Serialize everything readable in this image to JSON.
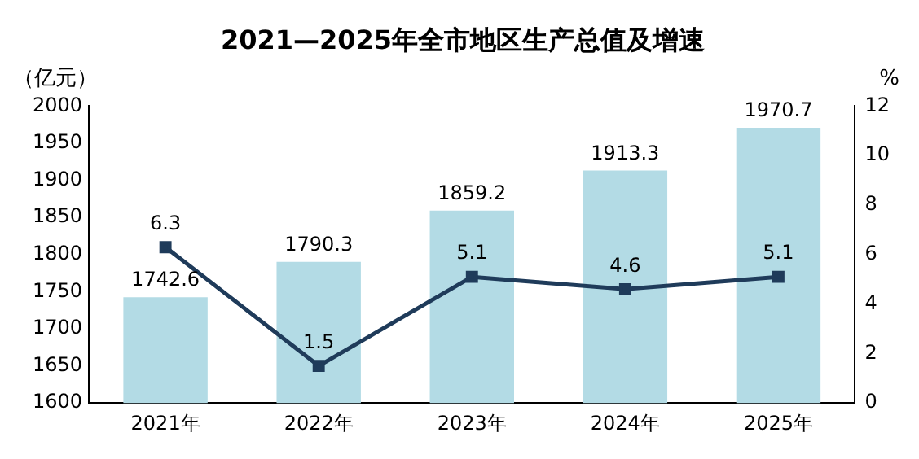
{
  "chart_data": {
    "type": "bar",
    "title": "2021—2025年全市地区生产总值及增速",
    "ylabel": "（亿元）",
    "y2label": "%",
    "categories": [
      "2021年",
      "2022年",
      "2023年",
      "2024年",
      "2025年"
    ],
    "series": [
      {
        "color": "#b3dbe5",
        "values": [
          1742.6,
          1790.3,
          1859.2,
          1913.3,
          1970.7
        ]
      },
      {
        "type": "line",
        "axis": "y2",
        "color": "#1f3b5a",
        "marker": "square",
        "values": [
          6.3,
          1.5,
          5.1,
          4.6,
          5.1
        ]
      }
    ],
    "ylim": [
      1600,
      2000
    ],
    "yticks": [
      1600,
      1650,
      1700,
      1750,
      1800,
      1850,
      1900,
      1950,
      2000
    ],
    "y2lim": [
      0,
      12
    ],
    "y2ticks": [
      0,
      2,
      4,
      6,
      8,
      10,
      12
    ],
    "data_labels": true,
    "grid": false,
    "legend": false
  }
}
